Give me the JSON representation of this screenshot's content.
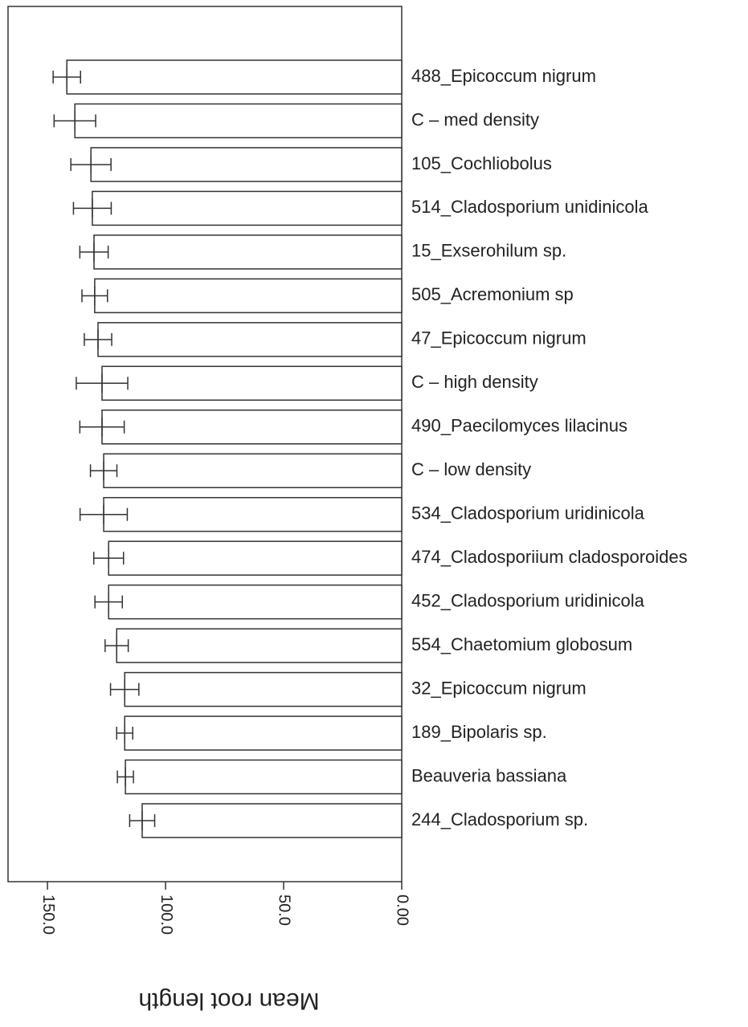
{
  "chart_data": {
    "type": "hbar",
    "xlabel": "Mean root length",
    "categories": [
      "488_Epicoccum nigrum",
      "C – med density",
      "105_Cochliobolus",
      "514_Cladosporium unidinicola",
      "15_Exserohilum sp.",
      "505_Acremonium sp",
      "47_Epicoccum nigrum",
      "C – high density",
      "490_Paecilomyces lilacinus",
      "C – low density",
      "534_Cladosporium uridinicola",
      "474_Cladosporiium cladosporoides",
      "452_Cladosporium uridinicola",
      "554_Chaetomium globosum",
      "32_Epicoccum nigrum",
      "189_Bipolaris sp.",
      "Beauveria bassiana",
      "244_Cladosporium sp."
    ],
    "values": [
      141.8,
      138.4,
      131.6,
      131,
      130.3,
      130,
      128.6,
      126.9,
      126.9,
      126.2,
      126.2,
      124.1,
      124.1,
      120.7,
      117.3,
      117.3,
      117,
      109.9
    ],
    "errors": [
      5.8,
      8.8,
      8.5,
      8,
      6,
      5.4,
      5.8,
      10.9,
      9.4,
      5.6,
      10,
      6.3,
      5.8,
      4.9,
      6,
      3.4,
      3.4,
      5.3
    ],
    "color": "#ffffff",
    "xlim": [
      0,
      166.7
    ],
    "xticks": [
      {
        "value": 150,
        "label": "150.0"
      },
      {
        "value": 100,
        "label": "100.0"
      },
      {
        "value": 50,
        "label": "50.0"
      },
      {
        "value": 0,
        "label": "0.00"
      }
    ],
    "x_reversed": true
  }
}
